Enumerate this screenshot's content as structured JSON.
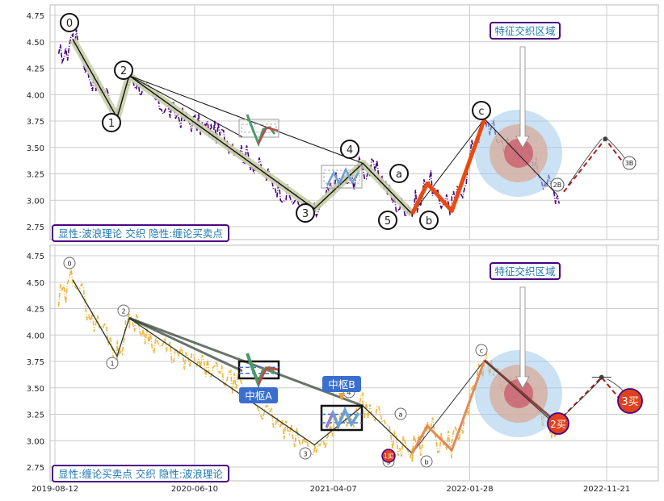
{
  "figure": {
    "x_ticks": [
      "2019-08-12",
      "2020-06-10",
      "2021-04-07",
      "2022-01-28",
      "2022-11-21"
    ],
    "colors": {
      "bg": "#ffffff",
      "grid": "#cccccc",
      "frame": "#bbbbbb",
      "price_top": "#4b0082",
      "price_bottom": "#f0b43c",
      "wave_band": "#c8cfa8",
      "wave_red": "#e84a10",
      "zone_outer": "#9ecbea",
      "zone_mid": "#d8a99a",
      "zone_inner": "#c85a6a",
      "label_border": "#4b0082",
      "label_text": "#1f77b4",
      "hub_fill": "#3a6fcf",
      "buy_fill": "#e0421e",
      "dashed_red": "#a02020"
    }
  },
  "chart_data": [
    {
      "type": "line",
      "panel": "top",
      "ylim": [
        2.65,
        4.85
      ],
      "y_ticks": [
        "4.75",
        "4.50",
        "4.25",
        "4.00",
        "3.75",
        "3.50",
        "3.25",
        "3.00",
        "2.75"
      ],
      "legend_text": "显性:波浪理论 交织 隐性:缠论买卖点",
      "annotation_text": "特征交织区域",
      "wave_points": [
        {
          "label": "0",
          "x": "2019-09-20",
          "y": 4.52
        },
        {
          "label": "1",
          "x": "2019-12-25",
          "y": 3.78
        },
        {
          "label": "2",
          "x": "2020-01-20",
          "y": 4.18
        },
        {
          "label": "3",
          "x": "2021-02-25",
          "y": 2.92
        },
        {
          "label": "4",
          "x": "2021-06-10",
          "y": 3.35
        },
        {
          "label": "5",
          "x": "2021-09-25",
          "y": 2.87
        },
        {
          "label": "a",
          "x": "2021-10-28",
          "y": 3.16
        },
        {
          "label": "b",
          "x": "2021-12-20",
          "y": 2.9
        },
        {
          "label": "c",
          "x": "2022-03-01",
          "y": 3.77
        }
      ],
      "hidden_labels": [
        "2B",
        "3B"
      ],
      "projection": [
        {
          "x": "2022-08-20",
          "y": 3.08
        },
        {
          "x": "2022-11-18",
          "y": 3.58
        },
        {
          "x": "2022-12-28",
          "y": 3.35
        }
      ]
    },
    {
      "type": "line",
      "panel": "bottom",
      "ylim": [
        2.65,
        4.85
      ],
      "y_ticks": [
        "4.75",
        "4.50",
        "4.25",
        "4.00",
        "3.75",
        "3.50",
        "3.25",
        "3.00",
        "2.75"
      ],
      "legend_text": "显性:缠论买卖点 交织 隐性:波浪理论",
      "annotation_text": "特征交织区域",
      "hub_labels": [
        "中枢A",
        "中枢B"
      ],
      "buy_labels": [
        "1买",
        "2买",
        "3买"
      ],
      "small_wave_labels": [
        "0",
        "1",
        "2",
        "3",
        "4",
        "5",
        "a",
        "b",
        "c"
      ],
      "stroke_points": [
        {
          "x": "2019-09-20",
          "y": 4.52
        },
        {
          "x": "2019-12-25",
          "y": 3.8
        },
        {
          "x": "2020-01-20",
          "y": 4.16
        },
        {
          "x": "2021-02-25",
          "y": 2.96
        },
        {
          "x": "2021-06-10",
          "y": 3.33
        },
        {
          "x": "2021-09-25",
          "y": 2.88
        },
        {
          "x": "2021-10-28",
          "y": 3.14
        },
        {
          "x": "2021-12-20",
          "y": 2.91
        },
        {
          "x": "2022-03-01",
          "y": 3.76
        },
        {
          "x": "2022-08-05",
          "y": 3.17
        }
      ],
      "projection": [
        {
          "x": "2022-08-05",
          "y": 3.17
        },
        {
          "x": "2022-11-10",
          "y": 3.6
        },
        {
          "x": "2022-12-28",
          "y": 3.35
        }
      ]
    }
  ]
}
